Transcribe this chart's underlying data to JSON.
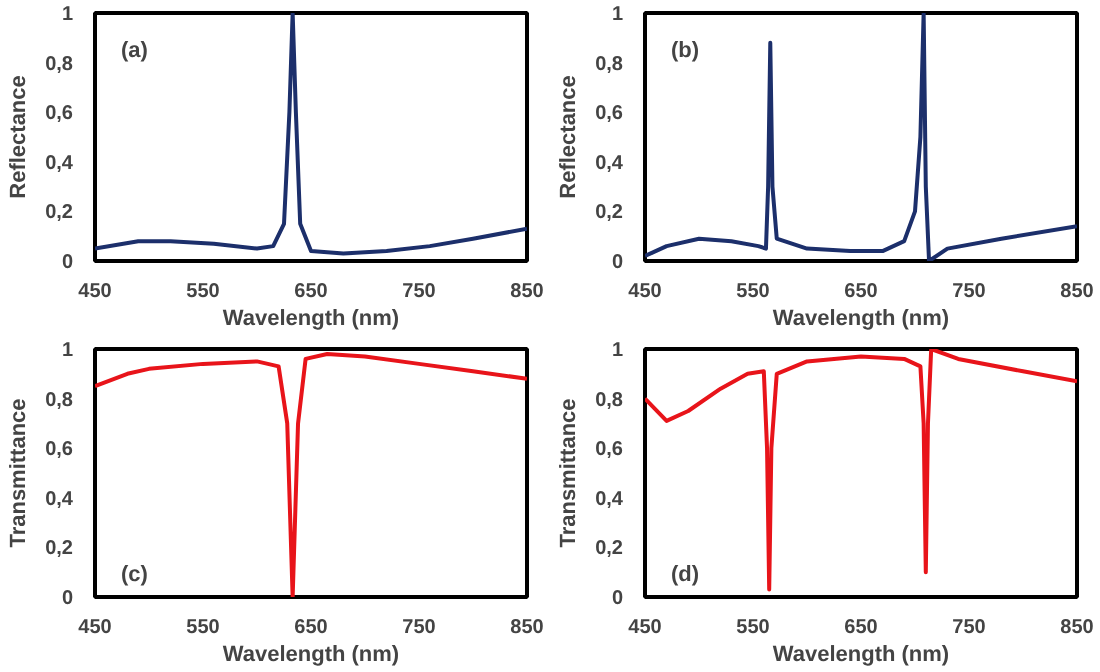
{
  "chart_data": [
    {
      "type": "line",
      "xlabel": "Wavelength (nm)",
      "ylabel": "Reflectance",
      "annotations": [
        "(a)"
      ],
      "xlim": [
        450,
        850
      ],
      "ylim": [
        0,
        1
      ],
      "xticks": [
        450,
        550,
        650,
        750,
        850
      ],
      "yticks": [
        0,
        {
          "value": 0.2,
          "label": "0,2"
        },
        {
          "value": 0.4,
          "label": "0,4"
        },
        {
          "value": 0.6,
          "label": "0,6"
        },
        {
          "value": 0.8,
          "label": "0,8"
        },
        1
      ],
      "series": [
        {
          "color": "#1c2f6b",
          "x": [
            450,
            490,
            520,
            560,
            600,
            615,
            625,
            630,
            633,
            636,
            640,
            650,
            680,
            720,
            760,
            800,
            850
          ],
          "values": [
            0.05,
            0.08,
            0.08,
            0.07,
            0.05,
            0.06,
            0.15,
            0.6,
            1.0,
            0.6,
            0.15,
            0.04,
            0.03,
            0.04,
            0.06,
            0.09,
            0.13
          ]
        }
      ]
    },
    {
      "type": "line",
      "xlabel": "Wavelength (nm)",
      "ylabel": "Reflectance",
      "annotations": [
        "(b)"
      ],
      "xlim": [
        450,
        850
      ],
      "ylim": [
        0,
        1
      ],
      "xticks": [
        450,
        550,
        650,
        750,
        850
      ],
      "yticks": [
        0,
        {
          "value": 0.2,
          "label": "0,2"
        },
        {
          "value": 0.4,
          "label": "0,4"
        },
        {
          "value": 0.6,
          "label": "0,6"
        },
        {
          "value": 0.8,
          "label": "0,8"
        },
        1
      ],
      "series": [
        {
          "color": "#1c2f6b",
          "x": [
            450,
            470,
            500,
            530,
            555,
            562,
            564,
            566,
            568,
            572,
            600,
            640,
            670,
            690,
            700,
            705,
            708,
            710,
            713,
            730,
            780,
            850
          ],
          "values": [
            0.02,
            0.06,
            0.09,
            0.08,
            0.06,
            0.05,
            0.3,
            0.88,
            0.3,
            0.09,
            0.05,
            0.04,
            0.04,
            0.08,
            0.2,
            0.5,
            1.0,
            0.3,
            0.0,
            0.05,
            0.09,
            0.14
          ]
        }
      ]
    },
    {
      "type": "line",
      "xlabel": "Wavelength (nm)",
      "ylabel": "Transmittance",
      "annotations": [
        "(c)"
      ],
      "xlim": [
        450,
        850
      ],
      "ylim": [
        0,
        1
      ],
      "xticks": [
        450,
        550,
        650,
        750,
        850
      ],
      "yticks": [
        0,
        {
          "value": 0.2,
          "label": "0,2"
        },
        {
          "value": 0.4,
          "label": "0,4"
        },
        {
          "value": 0.6,
          "label": "0,6"
        },
        {
          "value": 0.8,
          "label": "0,8"
        },
        1
      ],
      "series": [
        {
          "color": "#e8141a",
          "x": [
            450,
            480,
            500,
            550,
            600,
            620,
            628,
            633,
            638,
            645,
            665,
            700,
            750,
            800,
            850
          ],
          "values": [
            0.85,
            0.9,
            0.92,
            0.94,
            0.95,
            0.93,
            0.7,
            0.0,
            0.7,
            0.96,
            0.98,
            0.97,
            0.94,
            0.91,
            0.88
          ]
        }
      ]
    },
    {
      "type": "line",
      "xlabel": "Wavelength (nm)",
      "ylabel": "Transmittance",
      "annotations": [
        "(d)"
      ],
      "xlim": [
        450,
        850
      ],
      "ylim": [
        0,
        1
      ],
      "xticks": [
        450,
        550,
        650,
        750,
        850
      ],
      "yticks": [
        0,
        {
          "value": 0.2,
          "label": "0,2"
        },
        {
          "value": 0.4,
          "label": "0,4"
        },
        {
          "value": 0.6,
          "label": "0,6"
        },
        {
          "value": 0.8,
          "label": "0,8"
        },
        1
      ],
      "series": [
        {
          "color": "#e8141a",
          "x": [
            450,
            470,
            490,
            520,
            545,
            560,
            563,
            565,
            567,
            572,
            600,
            650,
            690,
            705,
            708,
            710,
            712,
            715,
            740,
            800,
            850
          ],
          "values": [
            0.8,
            0.71,
            0.75,
            0.84,
            0.9,
            0.91,
            0.6,
            0.03,
            0.6,
            0.9,
            0.95,
            0.97,
            0.96,
            0.93,
            0.7,
            0.1,
            0.7,
            1.0,
            0.96,
            0.91,
            0.87
          ]
        }
      ]
    }
  ]
}
